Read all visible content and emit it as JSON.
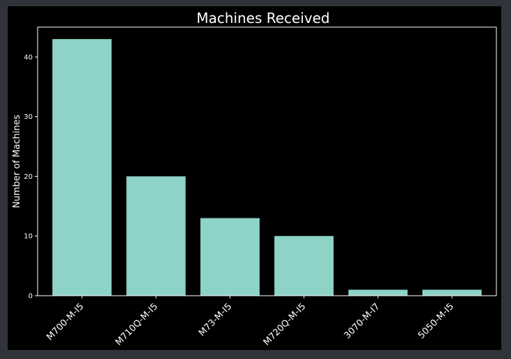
{
  "chart_data": {
    "type": "bar",
    "title": "Machines Received",
    "xlabel": "",
    "ylabel": "Number of Machines",
    "categories": [
      "M700-M-I5",
      "M710Q-M-I5",
      "M73-M-I5",
      "M720Q-M-I5",
      "3070-M-I7",
      "5050-M-I5"
    ],
    "values": [
      43,
      20,
      13,
      10,
      1,
      1
    ],
    "ylim": [
      0,
      45
    ],
    "yticks": [
      0,
      10,
      20,
      30,
      40
    ],
    "grid": false,
    "legend": "none",
    "bar_color": "#8dd3c7",
    "background_color": "#000000",
    "text_color": "#ffffff",
    "axes_color": "#ffffff"
  }
}
